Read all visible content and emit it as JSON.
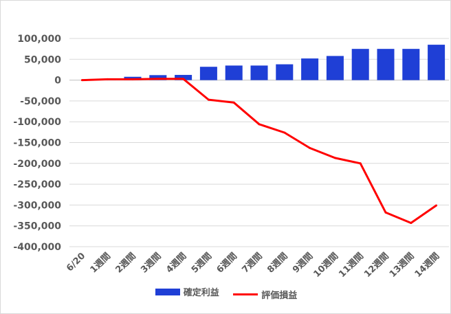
{
  "chart_data": {
    "type": "bar",
    "categories": [
      "6/20",
      "1週間",
      "2週間",
      "3週間",
      "4週間",
      "5週間",
      "6週間",
      "7週間",
      "8週間",
      "9週間",
      "10週間",
      "11週間",
      "12週間",
      "13週間",
      "14週間"
    ],
    "series": [
      {
        "name": "確定利益",
        "type": "bar",
        "color": "#1f3fd6",
        "values": [
          0,
          1500,
          8000,
          12000,
          12500,
          32000,
          35000,
          35000,
          38000,
          52000,
          58000,
          75000,
          75000,
          75000,
          85000
        ]
      },
      {
        "name": "評価損益",
        "type": "line",
        "color": "#ff0000",
        "values": [
          0,
          2000,
          2000,
          3000,
          3000,
          -47000,
          -54000,
          -106000,
          -126000,
          -163000,
          -187000,
          -200000,
          -318000,
          -343000,
          -301000
        ]
      }
    ],
    "ylim": [
      -400000,
      100000
    ],
    "yticks": [
      100000,
      50000,
      0,
      -50000,
      -100000,
      -150000,
      -200000,
      -250000,
      -300000,
      -350000,
      -400000
    ],
    "ytick_labels": [
      "100,000",
      "50,000",
      "0",
      "-50,000",
      "-100,000",
      "-150,000",
      "-200,000",
      "-250,000",
      "-300,000",
      "-350,000",
      "-400,000"
    ],
    "grid": true,
    "legend": "bottom",
    "title": "",
    "xlabel": "",
    "ylabel": ""
  }
}
